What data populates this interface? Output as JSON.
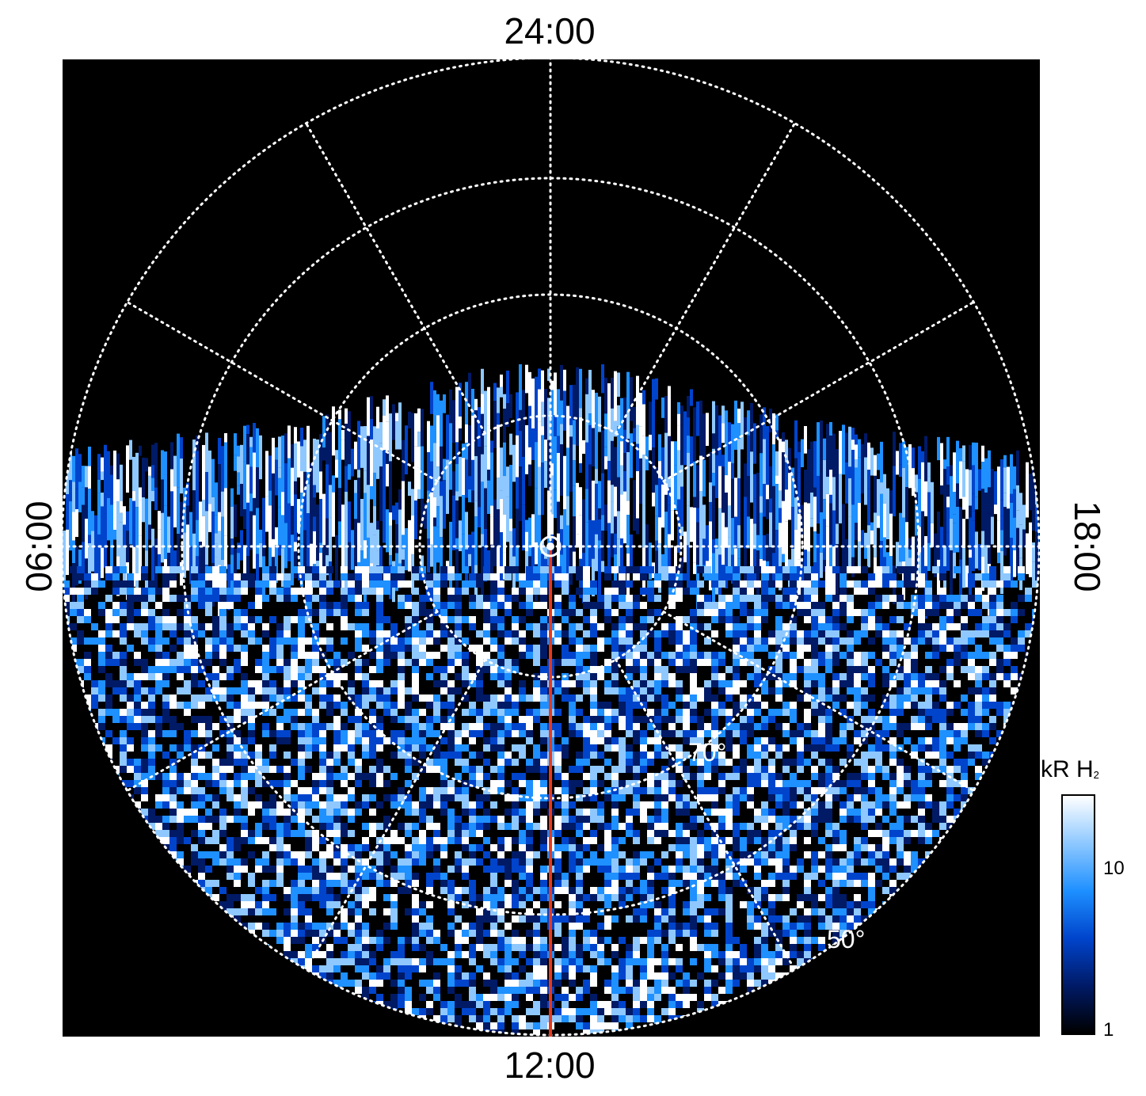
{
  "local_time_labels": {
    "top": "24:00",
    "bottom": "12:00",
    "left": "06:00",
    "right": "18:00"
  },
  "latitude_labels": [
    "70°",
    "50°"
  ],
  "colorbar": {
    "title_main": "kR H",
    "title_sub": "2",
    "ticks": [
      "10",
      "1"
    ],
    "scale": "log",
    "range": [
      1,
      30
    ],
    "colors": [
      "#000000",
      "#001a66",
      "#0044cc",
      "#1e90ff",
      "#8ec8ff",
      "#ffffff"
    ]
  },
  "colors": {
    "background": "#000000",
    "grid": "#ffffff",
    "meridian_line": "#e8391d"
  }
}
